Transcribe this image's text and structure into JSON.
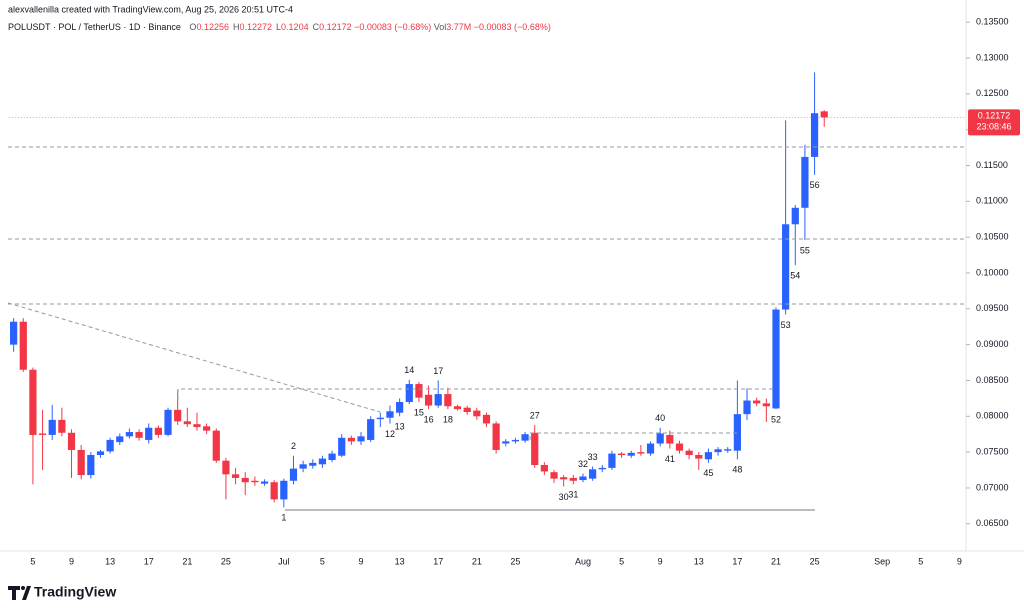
{
  "header": {
    "credit": "alexvallenilla created with TradingView.com, Aug 25, 2026 20:51 UTC-4",
    "symbol": "POLUSDT · POL / TetherUS · 1D · Binance",
    "ohlc": [
      {
        "label": "O",
        "value": 0.12256
      },
      {
        "label": "H",
        "value": 0.12272
      },
      {
        "label": "L",
        "value": 0.1204
      },
      {
        "label": "C",
        "value": 0.12172
      }
    ],
    "change": "−0.00083 (−0.68%)",
    "volume_label": "Vol",
    "volume": "3.77M",
    "volume_change": "−0.00083 (−0.68%)"
  },
  "chart_data": {
    "type": "candlestick",
    "up_color": "#2962ff",
    "down_color": "#f23645",
    "categories": [
      null,
      null,
      "5",
      null,
      null,
      null,
      "9",
      null,
      null,
      null,
      "13",
      null,
      null,
      null,
      "17",
      null,
      null,
      null,
      "21",
      null,
      null,
      null,
      "25",
      null,
      null,
      null,
      null,
      null,
      "Jul",
      null,
      null,
      null,
      "5",
      null,
      null,
      null,
      "9",
      null,
      null,
      null,
      "13",
      null,
      null,
      null,
      "17",
      null,
      null,
      null,
      "21",
      null,
      null,
      null,
      "25",
      null,
      null,
      null,
      null,
      null,
      null,
      "Aug",
      null,
      null,
      null,
      "5",
      null,
      null,
      null,
      "9",
      null,
      null,
      null,
      "13",
      null,
      null,
      null,
      "17",
      null,
      null,
      null,
      "21",
      null,
      null,
      null,
      "25",
      null,
      null,
      null,
      null,
      null,
      null,
      "Sep",
      null,
      null,
      null,
      "5",
      null,
      null,
      null,
      "9"
    ],
    "open": [
      0.09,
      0.0932,
      0.0865,
      0.0776,
      0.0774,
      0.0795,
      0.0777,
      0.0753,
      0.0718,
      0.0746,
      0.0751,
      0.0764,
      0.0772,
      0.0778,
      0.0767,
      0.0784,
      0.0774,
      0.0809,
      0.0793,
      0.0789,
      0.0786,
      0.078,
      0.0738,
      0.0719,
      0.0714,
      0.071,
      0.0706,
      0.0708,
      0.0684,
      0.071,
      0.0727,
      0.0731,
      0.0733,
      0.0739,
      0.0745,
      0.077,
      0.0765,
      0.0767,
      0.0796,
      0.0798,
      0.0805,
      0.082,
      0.0845,
      0.083,
      0.0815,
      0.0831,
      0.0814,
      0.0812,
      0.0808,
      0.0802,
      0.079,
      0.0762,
      0.0765,
      0.0766,
      0.0777,
      0.0732,
      0.0722,
      0.0715,
      0.0714,
      0.0711,
      0.0713,
      0.0726,
      0.0728,
      0.0748,
      0.0745,
      0.075,
      0.0748,
      0.0762,
      0.0774,
      0.0762,
      0.0752,
      0.0746,
      0.074,
      0.075,
      0.0752,
      0.0752,
      0.0803,
      0.0822,
      0.0818,
      0.0811,
      0.0949,
      0.1068,
      0.1091,
      0.1162,
      0.12256,
      null,
      null,
      null,
      null,
      null,
      null,
      null,
      null,
      null,
      null,
      null,
      null,
      null,
      null
    ],
    "high": [
      0.0937,
      0.0937,
      0.0868,
      0.0809,
      0.0816,
      0.0812,
      0.0782,
      0.076,
      0.075,
      0.0753,
      0.077,
      0.0776,
      0.0783,
      0.0782,
      0.079,
      0.0787,
      0.0812,
      0.0837,
      0.0812,
      0.0805,
      0.079,
      0.0783,
      0.0742,
      0.0728,
      0.0722,
      0.0716,
      0.0712,
      0.0711,
      0.0713,
      0.0745,
      0.0738,
      0.074,
      0.0745,
      0.0752,
      0.0775,
      0.0773,
      0.0778,
      0.08,
      0.0805,
      0.0815,
      0.0825,
      0.0851,
      0.0848,
      0.0843,
      0.085,
      0.084,
      0.0816,
      0.0815,
      0.0812,
      0.0805,
      0.0793,
      0.0768,
      0.077,
      0.0778,
      0.0788,
      0.0736,
      0.0725,
      0.0718,
      0.0718,
      0.072,
      0.073,
      0.0732,
      0.0752,
      0.075,
      0.0752,
      0.076,
      0.0765,
      0.0784,
      0.078,
      0.0766,
      0.0755,
      0.075,
      0.0755,
      0.0757,
      0.0757,
      0.085,
      0.0839,
      0.0826,
      0.0825,
      0.0952,
      0.1213,
      0.1095,
      0.1179,
      0.128,
      0.12272,
      null,
      null,
      null,
      null,
      null,
      null,
      null,
      null,
      null,
      null,
      null,
      null,
      null,
      null
    ],
    "low": [
      0.089,
      0.0862,
      0.0705,
      0.0725,
      0.0767,
      0.0772,
      0.0714,
      0.0712,
      0.0713,
      0.0742,
      0.0748,
      0.076,
      0.0769,
      0.0766,
      0.0762,
      0.077,
      0.0772,
      0.0788,
      0.0785,
      0.078,
      0.0775,
      0.0735,
      0.0684,
      0.0705,
      0.069,
      0.0703,
      0.0703,
      0.068,
      0.0673,
      0.0705,
      0.0722,
      0.0727,
      0.0728,
      0.0736,
      0.0743,
      0.076,
      0.076,
      0.0764,
      0.0785,
      0.079,
      0.08,
      0.0817,
      0.082,
      0.081,
      0.0812,
      0.081,
      0.0808,
      0.0802,
      0.0795,
      0.0785,
      0.0748,
      0.0758,
      0.0762,
      0.0763,
      0.0728,
      0.0718,
      0.0707,
      0.0702,
      0.0705,
      0.0708,
      0.071,
      0.0722,
      0.0725,
      0.0742,
      0.0742,
      0.0745,
      0.0745,
      0.0758,
      0.0755,
      0.0748,
      0.074,
      0.0725,
      0.0735,
      0.0745,
      0.0749,
      0.074,
      0.0795,
      0.0814,
      0.0792,
      0.081,
      0.0942,
      0.1011,
      0.1046,
      0.1137,
      0.1204,
      null,
      null,
      null,
      null,
      null,
      null,
      null,
      null,
      null,
      null,
      null,
      null,
      null,
      null
    ],
    "close": [
      0.0932,
      0.0865,
      0.0774,
      0.0774,
      0.0795,
      0.0777,
      0.0753,
      0.0718,
      0.0746,
      0.0751,
      0.0767,
      0.0772,
      0.0778,
      0.077,
      0.0784,
      0.0774,
      0.0809,
      0.0793,
      0.0789,
      0.0785,
      0.078,
      0.0738,
      0.0719,
      0.0714,
      0.0708,
      0.0708,
      0.0709,
      0.0684,
      0.071,
      0.0727,
      0.0733,
      0.0735,
      0.0741,
      0.0748,
      0.077,
      0.0765,
      0.0772,
      0.0796,
      0.0798,
      0.0807,
      0.082,
      0.0845,
      0.0826,
      0.0815,
      0.0831,
      0.0814,
      0.081,
      0.0806,
      0.08,
      0.079,
      0.0753,
      0.0765,
      0.0767,
      0.0775,
      0.0732,
      0.0723,
      0.0713,
      0.0712,
      0.071,
      0.0716,
      0.0726,
      0.0728,
      0.0748,
      0.0746,
      0.0749,
      0.0748,
      0.0762,
      0.0776,
      0.0762,
      0.0752,
      0.0746,
      0.0741,
      0.075,
      0.0754,
      0.0754,
      0.0803,
      0.0822,
      0.0818,
      0.0814,
      0.0949,
      0.1068,
      0.1091,
      0.1162,
      0.1223,
      0.12172,
      null,
      null,
      null,
      null,
      null,
      null,
      null,
      null,
      null,
      null,
      null,
      null,
      null,
      null
    ],
    "ylim": [
      0.0612,
      0.1381
    ],
    "yticks": [
      {
        "value": 0.065,
        "label": "0.06500"
      },
      {
        "value": 0.07,
        "label": "0.07000"
      },
      {
        "value": 0.075,
        "label": "0.07500"
      },
      {
        "value": 0.08,
        "label": "0.08000"
      },
      {
        "value": 0.085,
        "label": "0.08500"
      },
      {
        "value": 0.09,
        "label": "0.09000"
      },
      {
        "value": 0.095,
        "label": "0.09500"
      },
      {
        "value": 0.1,
        "label": "0.10000"
      },
      {
        "value": 0.105,
        "label": "0.10500"
      },
      {
        "value": 0.11,
        "label": "0.11000"
      },
      {
        "value": 0.115,
        "label": "0.11500"
      },
      {
        "value": 0.12,
        "label": "0.12000"
      },
      {
        "value": 0.125,
        "label": "0.12500"
      },
      {
        "value": 0.13,
        "label": "0.13000"
      },
      {
        "value": 0.135,
        "label": "0.13500"
      }
    ],
    "last_price": 0.12172,
    "countdown": "23:08:46",
    "annotations": [
      "1",
      "2",
      "12",
      "13",
      "14",
      "15",
      "16",
      "17",
      "18",
      "27",
      "30",
      "31",
      "32",
      "33",
      "40",
      "41",
      "45",
      "48",
      "52",
      "53",
      "54",
      "55",
      "56"
    ]
  },
  "footer": {
    "brand": "TradingView"
  }
}
